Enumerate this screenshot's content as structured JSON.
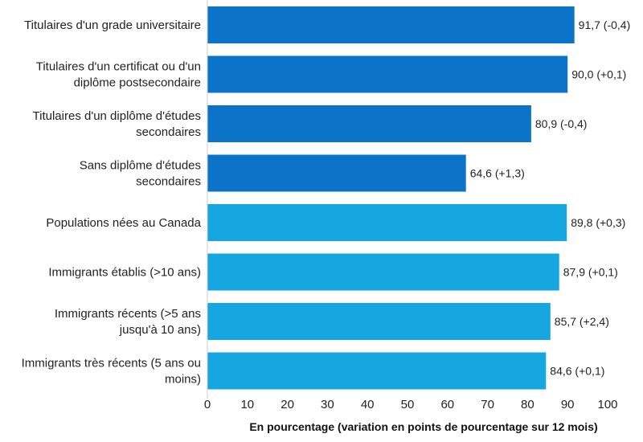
{
  "chart_data": {
    "type": "bar",
    "orientation": "horizontal",
    "xlabel": "En pourcentage (variation en points de pourcentage sur 12 mois)",
    "xlim": [
      0,
      100
    ],
    "xticks": [
      "0",
      "10",
      "20",
      "30",
      "40",
      "50",
      "60",
      "70",
      "80",
      "90",
      "100"
    ],
    "grid": false,
    "colors": {
      "education": "#0b74c8",
      "immigration": "#16a6e0"
    },
    "bars": [
      {
        "label_lines": [
          "Titulaires d'un grade universitaire"
        ],
        "value": 91.7,
        "value_label": "91,7 (-0,4)",
        "group": "education"
      },
      {
        "label_lines": [
          "Titulaires d'un certificat ou d'un",
          "diplôme postsecondaire"
        ],
        "value": 90.0,
        "value_label": "90,0 (+0,1)",
        "group": "education"
      },
      {
        "label_lines": [
          "Titulaires d'un diplôme d'études",
          "secondaires"
        ],
        "value": 80.9,
        "value_label": "80,9 (-0,4)",
        "group": "education"
      },
      {
        "label_lines": [
          "Sans diplôme d'études",
          "secondaires"
        ],
        "value": 64.6,
        "value_label": "64,6 (+1,3)",
        "group": "education"
      },
      {
        "label_lines": [
          "Populations nées au Canada"
        ],
        "value": 89.8,
        "value_label": "89,8 (+0,3)",
        "group": "immigration"
      },
      {
        "label_lines": [
          "Immigrants établis (>10 ans)"
        ],
        "value": 87.9,
        "value_label": "87,9 (+0,1)",
        "group": "immigration"
      },
      {
        "label_lines": [
          "Immigrants récents (>5 ans",
          "jusqu'à 10 ans)"
        ],
        "value": 85.7,
        "value_label": "85,7 (+2,4)",
        "group": "immigration"
      },
      {
        "label_lines": [
          "Immigrants très récents (5 ans ou",
          "moins)"
        ],
        "value": 84.6,
        "value_label": "84,6 (+0,1)",
        "group": "immigration"
      }
    ]
  }
}
